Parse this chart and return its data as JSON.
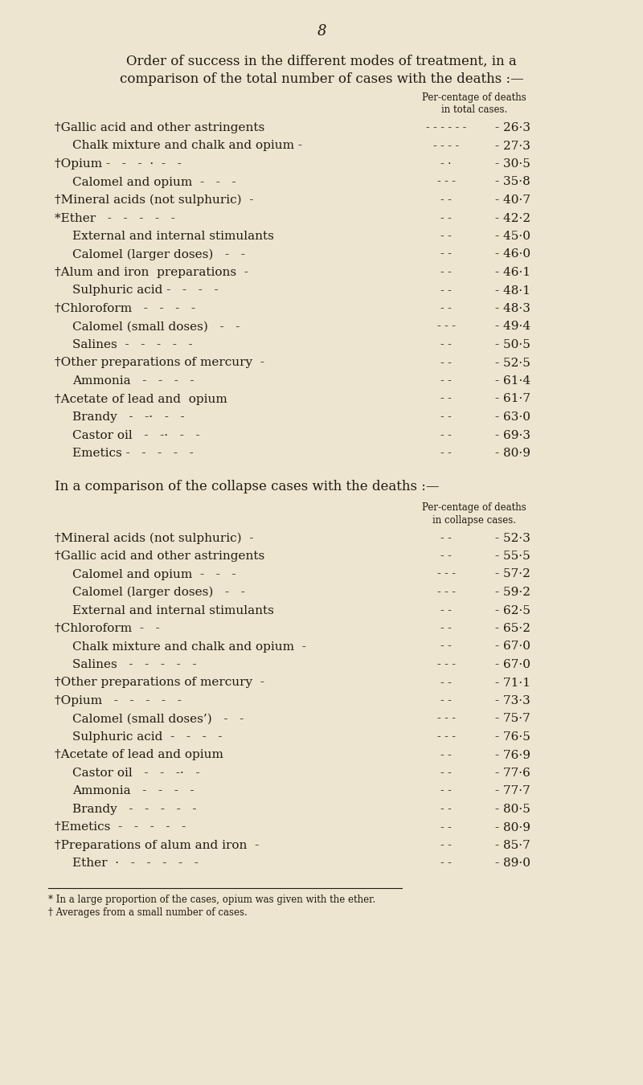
{
  "page_number": "8",
  "bg_color": "#ede5cf",
  "text_color": "#221a10",
  "title_line1": "Order of success in the different modes of treatment, in a",
  "title_line2": "comparison of the total number of cases with the deaths :—",
  "section1_header1": "Per-centage of deaths",
  "section1_header2": "in total cases.",
  "section1_rows": [
    [
      "†Gallic acid and other astringents",
      "- - - - - -",
      "26·3",
      false
    ],
    [
      "Chalk mixture and chalk and opium -",
      "- - - -",
      "27·3",
      true
    ],
    [
      "†Opium -   -   -  ·  -   -",
      "- ·",
      "30·5",
      false
    ],
    [
      "Calomel and opium  -   -   -",
      "- - -",
      "35·8",
      true
    ],
    [
      "†Mineral acids (not sulphuric)  -",
      "- -",
      "40·7",
      false
    ],
    [
      "*Ether   -   -   -   -   -",
      "- -",
      "42·2",
      false
    ],
    [
      "External and internal stimulants",
      "- -",
      "45·0",
      true
    ],
    [
      "Calomel (larger doses)   -   -",
      "- -",
      "46·0",
      true
    ],
    [
      "†Alum and iron  preparations  -",
      "- -",
      "46·1",
      false
    ],
    [
      "Sulphuric acid -   -   -   -",
      "- -",
      "48·1",
      true
    ],
    [
      "†Chloroform   -   -   -   -",
      "- -",
      "48·3",
      false
    ],
    [
      "Calomel (small doses)   -   -",
      "- - -",
      "49·4",
      true
    ],
    [
      "Salines  -   -   -   -   -",
      "- -",
      "50·5",
      true
    ],
    [
      "†Other preparations of mercury  -",
      "- -",
      "52·5",
      false
    ],
    [
      "Ammonia   -   -   -   -",
      "- -",
      "61·4",
      true
    ],
    [
      "†Acetate of lead and  opium",
      "- -",
      "61·7",
      false
    ],
    [
      "Brandy   -   -·   -   -",
      "- -",
      "63·0",
      true
    ],
    [
      "Castor oil   -   -·   -   -",
      "- -",
      "69·3",
      true
    ],
    [
      "Emetics -   -   -   -   -",
      "- -",
      "80·9",
      true
    ]
  ],
  "section2_title": "In a comparison of the collapse cases with the deaths :—",
  "section2_header1": "Per-centage of deaths",
  "section2_header2": "in collapse cases.",
  "section2_rows": [
    [
      "†Mineral acids (not sulphuric)  -",
      "- -",
      "52·3",
      false
    ],
    [
      "†Gallic acid and other astringents",
      "- -",
      "55·5",
      false
    ],
    [
      "Calomel and opium  -   -   -",
      "- - -",
      "57·2",
      true
    ],
    [
      "Calomel (larger doses)   -   -",
      "- - -",
      "59·2",
      true
    ],
    [
      "External and internal stimulants",
      "- -",
      "62·5",
      true
    ],
    [
      "†Chloroform  -   -",
      "- -",
      "65·2",
      false
    ],
    [
      "Chalk mixture and chalk and opium  -",
      "- -",
      "67·0",
      true
    ],
    [
      "Salines   -   -   -   -   -",
      "- - -",
      "67·0",
      true
    ],
    [
      "†Other preparations of mercury  -",
      "- -",
      "71·1",
      false
    ],
    [
      "†Opium   -   -   -   -   -",
      "- -",
      "73·3",
      false
    ],
    [
      "Calomel (small doses’)   -   -",
      "- - -",
      "75·7",
      true
    ],
    [
      "Sulphuric acid  -   -   -   -",
      "- - -",
      "76·5",
      true
    ],
    [
      "†Acetate of lead and opium",
      "- -",
      "76·9",
      false
    ],
    [
      "Castor oil   -   -   -·   -",
      "- -",
      "77·6",
      true
    ],
    [
      "Ammonia   -   -   -   -",
      "- -",
      "77·7",
      true
    ],
    [
      "Brandy   -   -   -   -   -",
      "- -",
      "80·5",
      true
    ],
    [
      "†Emetics  -   -   -   -   -",
      "- -",
      "80·9",
      false
    ],
    [
      "†Preparations of alum and iron  -",
      "- -",
      "85·7",
      false
    ],
    [
      "Ether  ·   -   -   -   -   -",
      "- -",
      "89·0",
      true
    ]
  ],
  "footnote1": "* In a large proportion of the cases, opium was given with the ether.",
  "footnote2": "† Averages from a small number of cases."
}
